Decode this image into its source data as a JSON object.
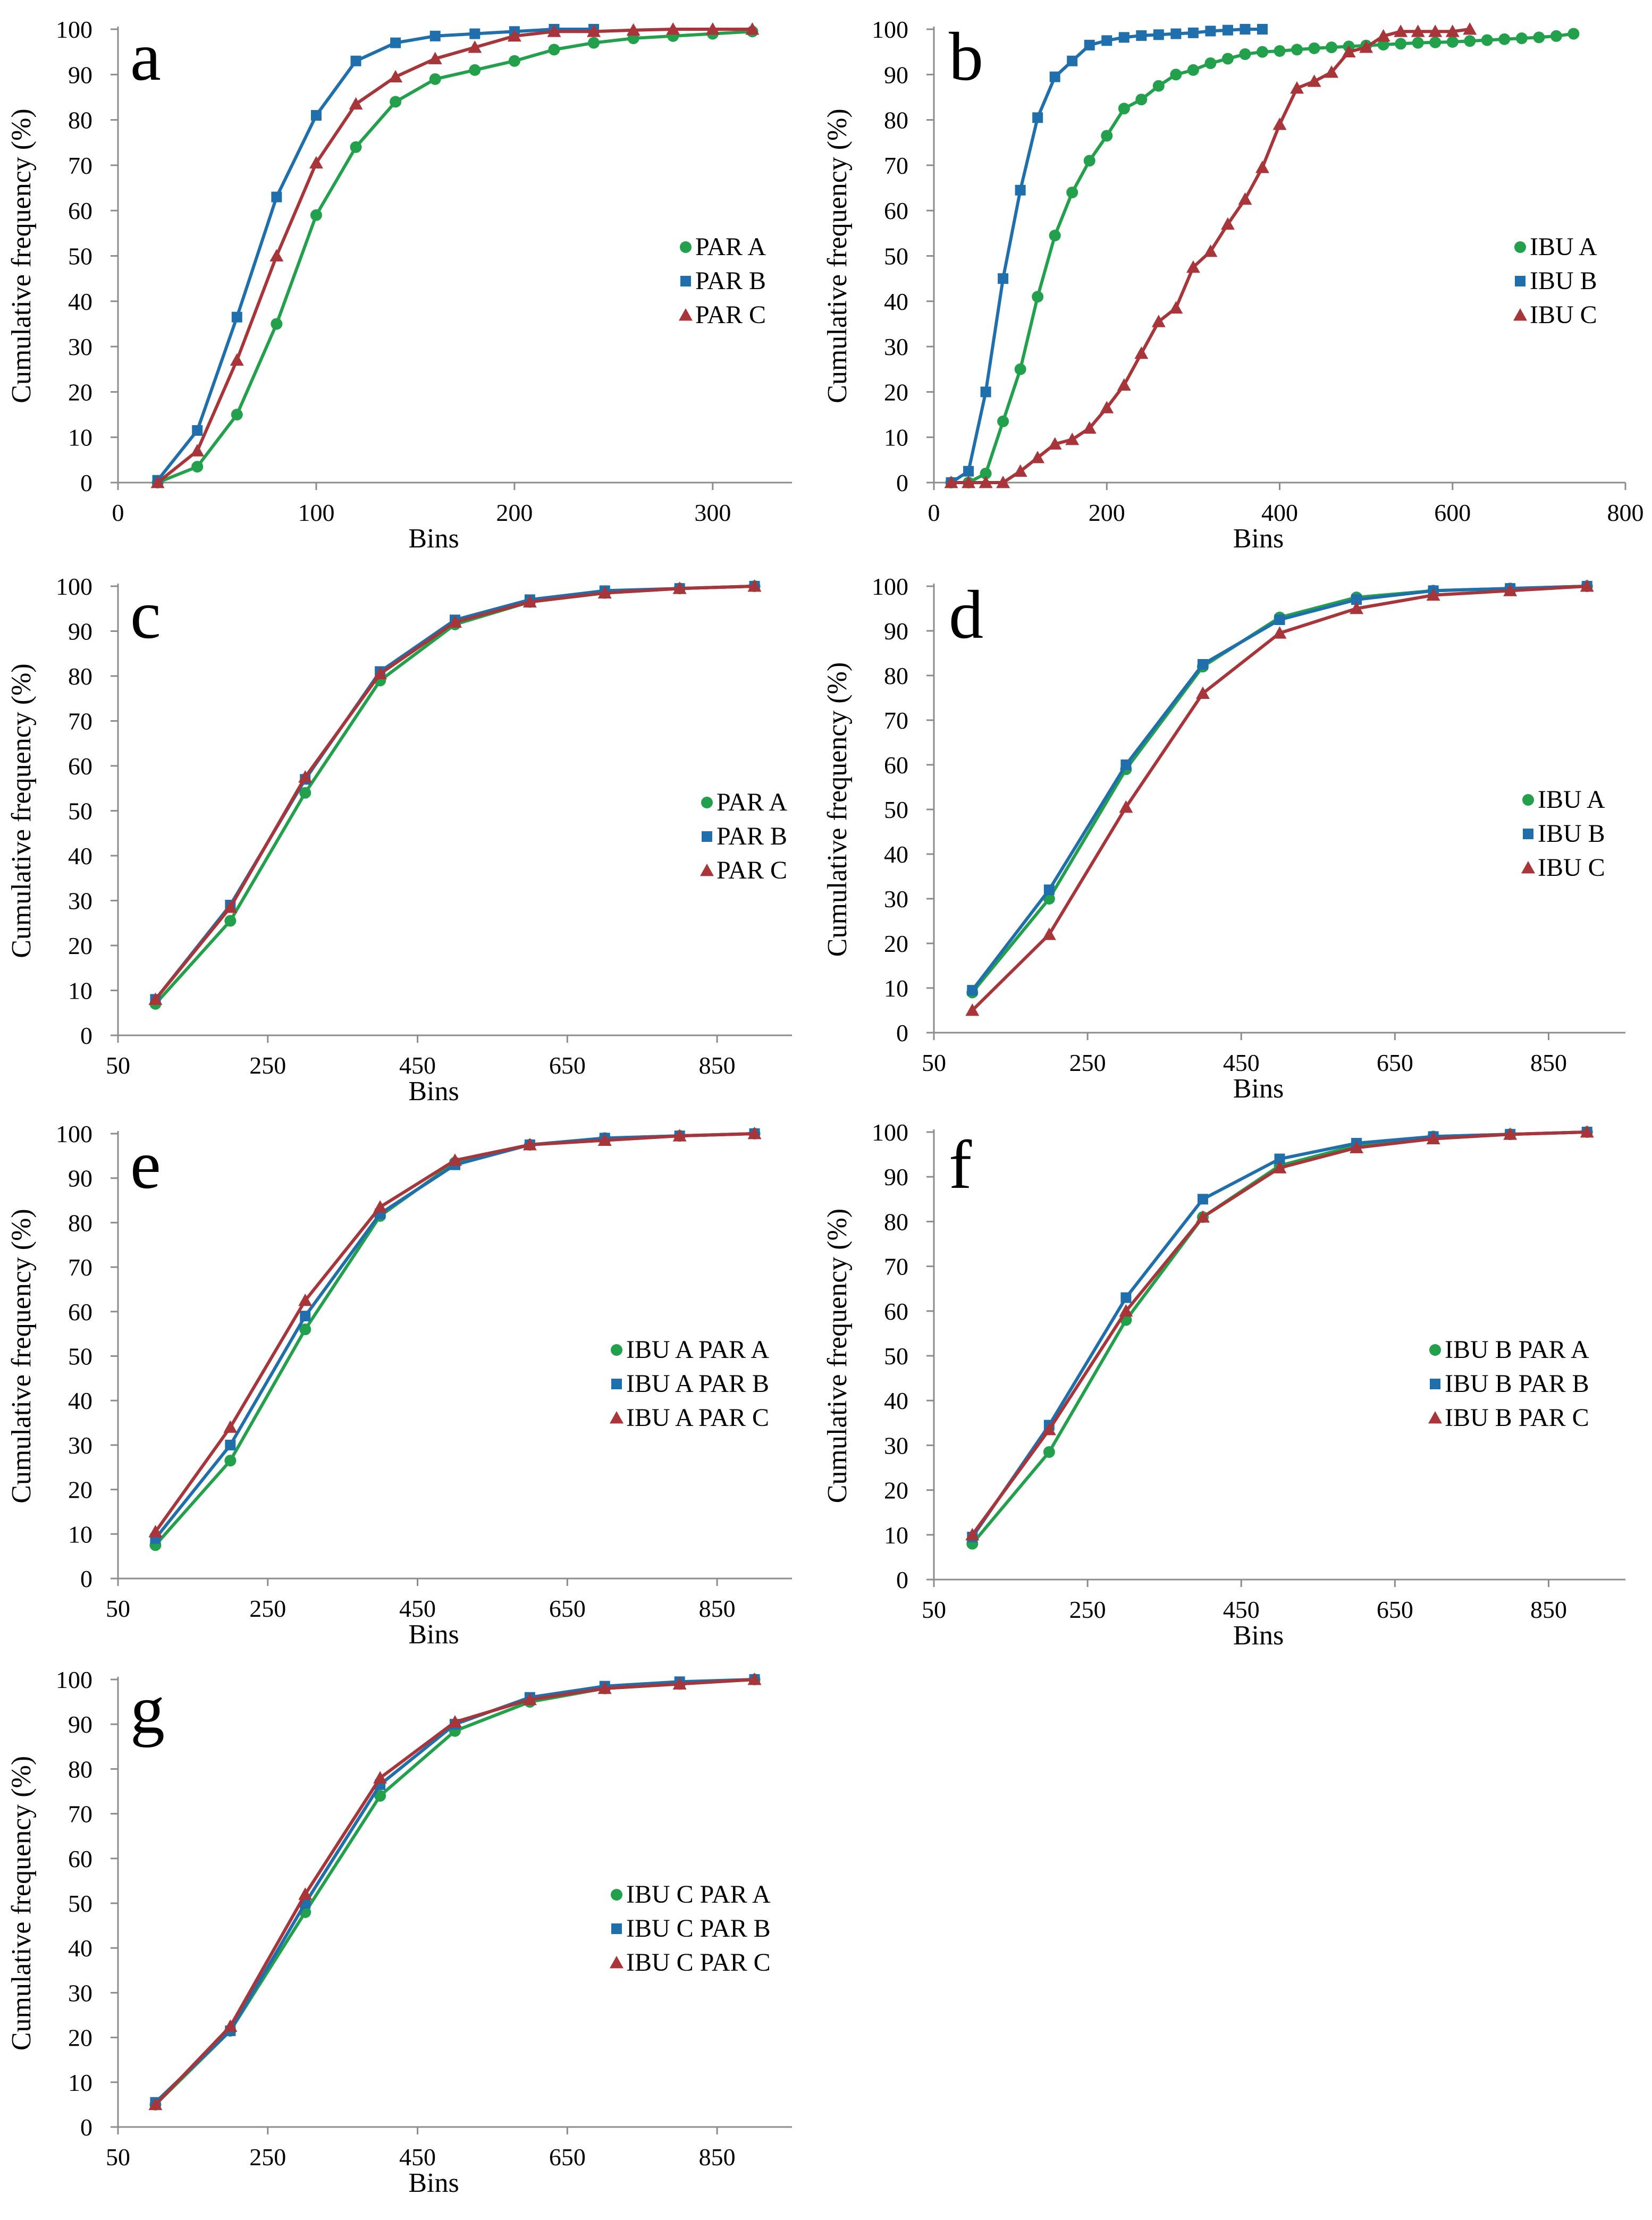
{
  "colors": {
    "green": "#22a04b",
    "blue": "#1f6fad",
    "red": "#a8353a",
    "axis": "#8c8c8c"
  },
  "chart_data": [
    {
      "panel": "a",
      "type": "line",
      "xlabel": "Bins",
      "ylabel": "Cumulative frequency (%)",
      "xlim": [
        0,
        340
      ],
      "xticks": [
        0,
        100,
        200,
        300
      ],
      "ylim": [
        0,
        100
      ],
      "yticks": [
        0,
        10,
        20,
        30,
        40,
        50,
        60,
        70,
        80,
        90,
        100
      ],
      "series": [
        {
          "name": "PAR A",
          "marker": "circle",
          "color": "#22a04b",
          "x": [
            20,
            40,
            60,
            80,
            100,
            120,
            140,
            160,
            180,
            200,
            220,
            240,
            260,
            280,
            300,
            320
          ],
          "y": [
            0,
            3.5,
            15,
            35,
            59,
            74,
            84,
            89,
            91,
            93,
            95.5,
            97,
            98,
            98.5,
            99,
            99.5
          ]
        },
        {
          "name": "PAR B",
          "marker": "square",
          "color": "#1f6fad",
          "x": [
            20,
            40,
            60,
            80,
            100,
            120,
            140,
            160,
            180,
            200,
            220,
            240
          ],
          "y": [
            0.5,
            11.5,
            36.5,
            63,
            81,
            93,
            97,
            98.5,
            99,
            99.5,
            100,
            100
          ]
        },
        {
          "name": "PAR C",
          "marker": "triangle",
          "color": "#a8353a",
          "x": [
            20,
            40,
            60,
            80,
            100,
            120,
            140,
            160,
            180,
            200,
            220,
            240,
            260,
            280,
            300,
            320
          ],
          "y": [
            0,
            7,
            27,
            50,
            70.5,
            83.5,
            89.5,
            93.5,
            96,
            98.5,
            99.5,
            99.5,
            99.8,
            100,
            100,
            100
          ]
        }
      ]
    },
    {
      "panel": "b",
      "type": "line",
      "xlabel": "Bins",
      "ylabel": "Cumulative frequency (%)",
      "xlim": [
        0,
        800
      ],
      "xticks": [
        0,
        200,
        400,
        600,
        800
      ],
      "ylim": [
        0,
        100
      ],
      "yticks": [
        0,
        10,
        20,
        30,
        40,
        50,
        60,
        70,
        80,
        90,
        100
      ],
      "series": [
        {
          "name": "IBU A",
          "marker": "circle",
          "color": "#22a04b",
          "x": [
            20,
            40,
            60,
            80,
            100,
            120,
            140,
            160,
            180,
            200,
            220,
            240,
            260,
            280,
            300,
            320,
            340,
            360,
            380,
            400,
            420,
            440,
            460,
            480,
            500,
            520,
            540,
            560,
            580,
            600,
            620,
            640,
            660,
            680,
            700,
            720,
            740
          ],
          "y": [
            0,
            0,
            2,
            13.5,
            25,
            41,
            54.5,
            64,
            71,
            76.5,
            82.5,
            84.5,
            87.5,
            90,
            91,
            92.5,
            93.5,
            94.5,
            95,
            95.2,
            95.5,
            95.8,
            96,
            96.2,
            96.4,
            96.6,
            96.8,
            97,
            97.1,
            97.2,
            97.4,
            97.6,
            97.8,
            98,
            98.2,
            98.5,
            99
          ]
        },
        {
          "name": "IBU B",
          "marker": "square",
          "color": "#1f6fad",
          "x": [
            20,
            40,
            60,
            80,
            100,
            120,
            140,
            160,
            180,
            200,
            220,
            240,
            260,
            280,
            300,
            320,
            340,
            360,
            380
          ],
          "y": [
            0,
            2.5,
            20,
            45,
            64.5,
            80.5,
            89.5,
            93,
            96.5,
            97.5,
            98.2,
            98.6,
            98.8,
            99,
            99.2,
            99.6,
            99.8,
            100,
            100
          ]
        },
        {
          "name": "IBU C",
          "marker": "triangle",
          "color": "#a8353a",
          "x": [
            20,
            40,
            60,
            80,
            100,
            120,
            140,
            160,
            180,
            200,
            220,
            240,
            260,
            280,
            300,
            320,
            340,
            360,
            380,
            400,
            420,
            440,
            460,
            480,
            500,
            520,
            540,
            560,
            580,
            600,
            620
          ],
          "y": [
            0,
            0,
            0,
            0,
            2.5,
            5.5,
            8.5,
            9.5,
            12,
            16.5,
            21.5,
            28.5,
            35.5,
            38.5,
            47.5,
            51,
            57,
            62.5,
            69.5,
            79,
            87,
            88.5,
            90.5,
            95,
            96,
            98.5,
            99.5,
            99.5,
            99.5,
            99.5,
            100
          ]
        }
      ]
    },
    {
      "panel": "c",
      "type": "line",
      "xlabel": "Bins",
      "ylabel": "Cumulative frequency (%)",
      "xlim": [
        50,
        950
      ],
      "xticks": [
        50,
        250,
        450,
        650,
        850
      ],
      "ylim": [
        0,
        100
      ],
      "yticks": [
        0,
        10,
        20,
        30,
        40,
        50,
        60,
        70,
        80,
        90,
        100
      ],
      "series": [
        {
          "name": "PAR A",
          "marker": "circle",
          "color": "#22a04b",
          "x": [
            100,
            200,
            300,
            400,
            500,
            600,
            700,
            800,
            900
          ],
          "y": [
            7,
            25.5,
            54,
            79,
            91.5,
            96.5,
            98.5,
            99.5,
            100
          ]
        },
        {
          "name": "PAR B",
          "marker": "square",
          "color": "#1f6fad",
          "x": [
            100,
            200,
            300,
            400,
            500,
            600,
            700,
            800,
            900
          ],
          "y": [
            8,
            29,
            57,
            81,
            92.5,
            97,
            99,
            99.5,
            100
          ]
        },
        {
          "name": "PAR C",
          "marker": "triangle",
          "color": "#a8353a",
          "x": [
            100,
            200,
            300,
            400,
            500,
            600,
            700,
            800,
            900
          ],
          "y": [
            8,
            28.5,
            57.5,
            80.5,
            92,
            96.5,
            98.5,
            99.5,
            100
          ]
        }
      ]
    },
    {
      "panel": "d",
      "type": "line",
      "xlabel": "Bins",
      "ylabel": "Cumulative frequency (%)",
      "xlim": [
        50,
        950
      ],
      "xticks": [
        50,
        250,
        450,
        650,
        850
      ],
      "ylim": [
        0,
        100
      ],
      "yticks": [
        0,
        10,
        20,
        30,
        40,
        50,
        60,
        70,
        80,
        90,
        100
      ],
      "series": [
        {
          "name": "IBU A",
          "marker": "circle",
          "color": "#22a04b",
          "x": [
            100,
            200,
            300,
            400,
            500,
            600,
            700,
            800,
            900
          ],
          "y": [
            9,
            30,
            59,
            82,
            93,
            97.5,
            99,
            99.5,
            100
          ]
        },
        {
          "name": "IBU B",
          "marker": "square",
          "color": "#1f6fad",
          "x": [
            100,
            200,
            300,
            400,
            500,
            600,
            700,
            800,
            900
          ],
          "y": [
            9.5,
            32,
            60,
            82.5,
            92.5,
            97,
            99,
            99.5,
            100
          ]
        },
        {
          "name": "IBU C",
          "marker": "triangle",
          "color": "#a8353a",
          "x": [
            100,
            200,
            300,
            400,
            500,
            600,
            700,
            800,
            900
          ],
          "y": [
            5,
            22,
            50.5,
            76,
            89.5,
            95,
            98,
            99,
            100
          ]
        }
      ]
    },
    {
      "panel": "e",
      "type": "line",
      "xlabel": "Bins",
      "ylabel": "Cumulative frequency (%)",
      "xlim": [
        50,
        950
      ],
      "xticks": [
        50,
        250,
        450,
        650,
        850
      ],
      "ylim": [
        0,
        100
      ],
      "yticks": [
        0,
        10,
        20,
        30,
        40,
        50,
        60,
        70,
        80,
        90,
        100
      ],
      "series": [
        {
          "name": "IBU A PAR A",
          "marker": "circle",
          "color": "#22a04b",
          "x": [
            100,
            200,
            300,
            400,
            500,
            600,
            700,
            800,
            900
          ],
          "y": [
            7.5,
            26.5,
            56,
            81.5,
            93.5,
            97.5,
            99,
            99.5,
            100
          ]
        },
        {
          "name": "IBU A PAR B",
          "marker": "square",
          "color": "#1f6fad",
          "x": [
            100,
            200,
            300,
            400,
            500,
            600,
            700,
            800,
            900
          ],
          "y": [
            9,
            30,
            59,
            82,
            93,
            97.5,
            99,
            99.5,
            100
          ]
        },
        {
          "name": "IBU A PAR C",
          "marker": "triangle",
          "color": "#a8353a",
          "x": [
            100,
            200,
            300,
            400,
            500,
            600,
            700,
            800,
            900
          ],
          "y": [
            10.5,
            34,
            62.5,
            83.5,
            94,
            97.5,
            98.5,
            99.5,
            100
          ]
        }
      ]
    },
    {
      "panel": "f",
      "type": "line",
      "xlabel": "Bins",
      "ylabel": "Cumulative frequency (%)",
      "xlim": [
        50,
        950
      ],
      "xticks": [
        50,
        250,
        450,
        650,
        850
      ],
      "ylim": [
        0,
        100
      ],
      "yticks": [
        0,
        10,
        20,
        30,
        40,
        50,
        60,
        70,
        80,
        90,
        100
      ],
      "series": [
        {
          "name": "IBU B PAR A",
          "marker": "circle",
          "color": "#22a04b",
          "x": [
            100,
            200,
            300,
            400,
            500,
            600,
            700,
            800,
            900
          ],
          "y": [
            8,
            28.5,
            58,
            81,
            92.5,
            97,
            99,
            99.5,
            100
          ]
        },
        {
          "name": "IBU B PAR B",
          "marker": "square",
          "color": "#1f6fad",
          "x": [
            100,
            200,
            300,
            400,
            500,
            600,
            700,
            800,
            900
          ],
          "y": [
            9.5,
            34.5,
            63,
            85,
            94,
            97.5,
            99,
            99.5,
            100
          ]
        },
        {
          "name": "IBU B PAR C",
          "marker": "triangle",
          "color": "#a8353a",
          "x": [
            100,
            200,
            300,
            400,
            500,
            600,
            700,
            800,
            900
          ],
          "y": [
            10,
            33.5,
            60,
            81,
            92,
            96.5,
            98.5,
            99.5,
            100
          ]
        }
      ]
    },
    {
      "panel": "g",
      "type": "line",
      "xlabel": "Bins",
      "ylabel": "Cumulative frequency (%)",
      "xlim": [
        50,
        950
      ],
      "xticks": [
        50,
        250,
        450,
        650,
        850
      ],
      "ylim": [
        0,
        100
      ],
      "yticks": [
        0,
        10,
        20,
        30,
        40,
        50,
        60,
        70,
        80,
        90,
        100
      ],
      "series": [
        {
          "name": "IBU C PAR A",
          "marker": "circle",
          "color": "#22a04b",
          "x": [
            100,
            200,
            300,
            400,
            500,
            600,
            700,
            800,
            900
          ],
          "y": [
            5,
            21.5,
            48,
            74,
            88.5,
            95,
            98,
            99,
            100
          ]
        },
        {
          "name": "IBU C PAR B",
          "marker": "square",
          "color": "#1f6fad",
          "x": [
            100,
            200,
            300,
            400,
            500,
            600,
            700,
            800,
            900
          ],
          "y": [
            5.5,
            21.5,
            50,
            76.5,
            90,
            96,
            98.5,
            99.5,
            100
          ]
        },
        {
          "name": "IBU C PAR C",
          "marker": "triangle",
          "color": "#a8353a",
          "x": [
            100,
            200,
            300,
            400,
            500,
            600,
            700,
            800,
            900
          ],
          "y": [
            5,
            22.5,
            52,
            78,
            90.5,
            95.5,
            98,
            99,
            100
          ]
        }
      ]
    }
  ]
}
